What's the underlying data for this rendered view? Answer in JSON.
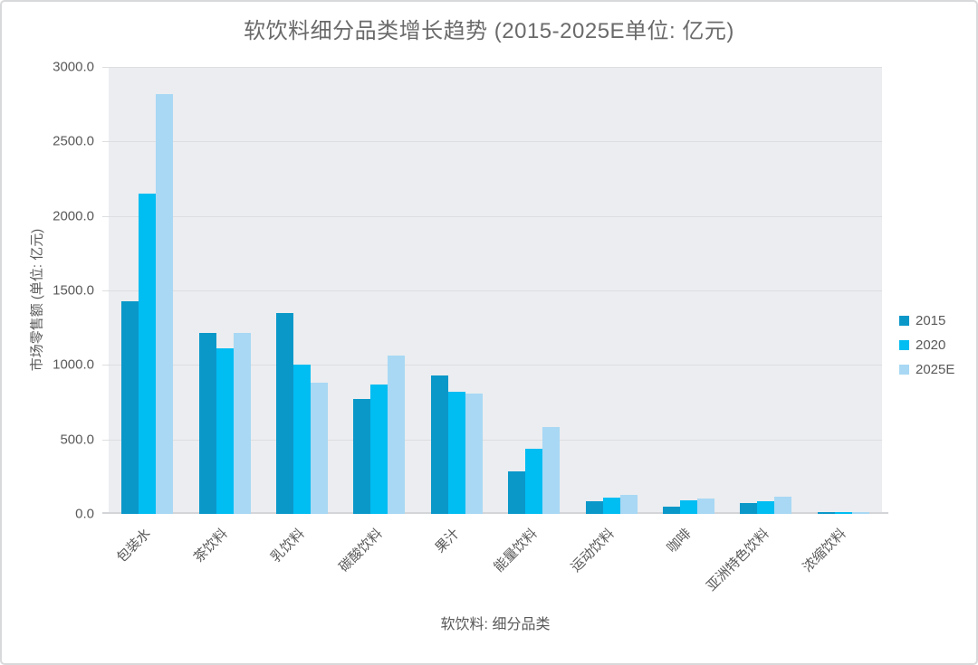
{
  "title": "软饮料细分品类增长趋势 (2015-2025E单位: 亿元)",
  "chart_data": {
    "type": "bar",
    "title": "软饮料细分品类增长趋势 (2015-2025E单位: 亿元)",
    "xlabel": "软饮料: 细分品类",
    "ylabel": "市场零售额 (单位: 亿元)",
    "categories": [
      "包装水",
      "茶饮料",
      "乳饮料",
      "碳酸饮料",
      "果汁",
      "能量饮料",
      "运动饮料",
      "咖啡",
      "亚洲特色饮料",
      "浓缩饮料"
    ],
    "series": [
      {
        "name": "2015",
        "color": "#0a98c9",
        "values": [
          1425,
          1215,
          1350,
          770,
          930,
          285,
          85,
          50,
          75,
          15
        ]
      },
      {
        "name": "2020",
        "color": "#00bdf2",
        "values": [
          2150,
          1110,
          1000,
          870,
          820,
          440,
          110,
          90,
          85,
          10
        ]
      },
      {
        "name": "2025E",
        "color": "#a8d8f4",
        "values": [
          2820,
          1215,
          880,
          1060,
          810,
          580,
          125,
          105,
          115,
          8
        ]
      }
    ],
    "ylim": [
      0,
      3000
    ],
    "ytick_step": 500,
    "ytick_labels": [
      "0.0",
      "500.0",
      "1000.0",
      "1500.0",
      "2000.0",
      "2500.0",
      "3000.0"
    ],
    "grid": true,
    "legend_position": "right",
    "plot_bg": "#ebedf0",
    "gridline_color": "#dcdee0",
    "text_color": "#595959",
    "title_color": "#6a6a6a"
  }
}
